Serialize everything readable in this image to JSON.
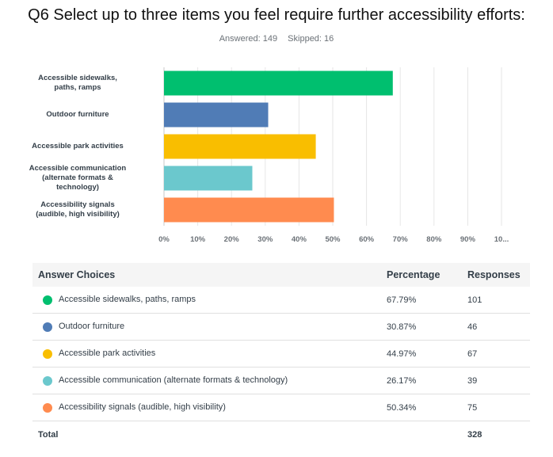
{
  "header": {
    "title": "Q6 Select up to three items you feel require further accessibility efforts:",
    "answered_label": "Answered: 149",
    "skipped_label": "Skipped: 16"
  },
  "chart_data": {
    "type": "bar",
    "orientation": "horizontal",
    "categories": [
      "Accessible sidewalks, paths, ramps",
      "Outdoor furniture",
      "Accessible park activities",
      "Accessible communication (alternate formats & technology)",
      "Accessibility signals (audible, high visibility)"
    ],
    "display_labels": [
      [
        "Accessible sidewalks,",
        "paths, ramps"
      ],
      [
        "Outdoor furniture"
      ],
      [
        "Accessible park activities"
      ],
      [
        "Accessible communication",
        "(alternate formats &",
        "technology)"
      ],
      [
        "Accessibility signals",
        "(audible, high visibility)"
      ]
    ],
    "values": [
      67.79,
      30.87,
      44.97,
      26.17,
      50.34
    ],
    "colors": [
      "#00bf6f",
      "#507cb6",
      "#f9be00",
      "#6bc8cd",
      "#ff8b4f"
    ],
    "xlim": [
      0,
      100
    ],
    "xticks": [
      "0%",
      "10%",
      "20%",
      "30%",
      "40%",
      "50%",
      "60%",
      "70%",
      "80%",
      "90%",
      "10..."
    ],
    "grid": true
  },
  "table": {
    "headers": {
      "choice": "Answer Choices",
      "percentage": "Percentage",
      "responses": "Responses"
    },
    "rows": [
      {
        "choice": "Accessible sidewalks, paths, ramps",
        "percentage": "67.79%",
        "responses": "101",
        "color": "#00bf6f"
      },
      {
        "choice": "Outdoor furniture",
        "percentage": "30.87%",
        "responses": "46",
        "color": "#507cb6"
      },
      {
        "choice": "Accessible park activities",
        "percentage": "44.97%",
        "responses": "67",
        "color": "#f9be00"
      },
      {
        "choice": "Accessible communication (alternate formats & technology)",
        "percentage": "26.17%",
        "responses": "39",
        "color": "#6bc8cd"
      },
      {
        "choice": "Accessibility signals (audible, high visibility)",
        "percentage": "50.34%",
        "responses": "75",
        "color": "#ff8b4f"
      }
    ],
    "total_label": "Total",
    "total_value": "328"
  }
}
